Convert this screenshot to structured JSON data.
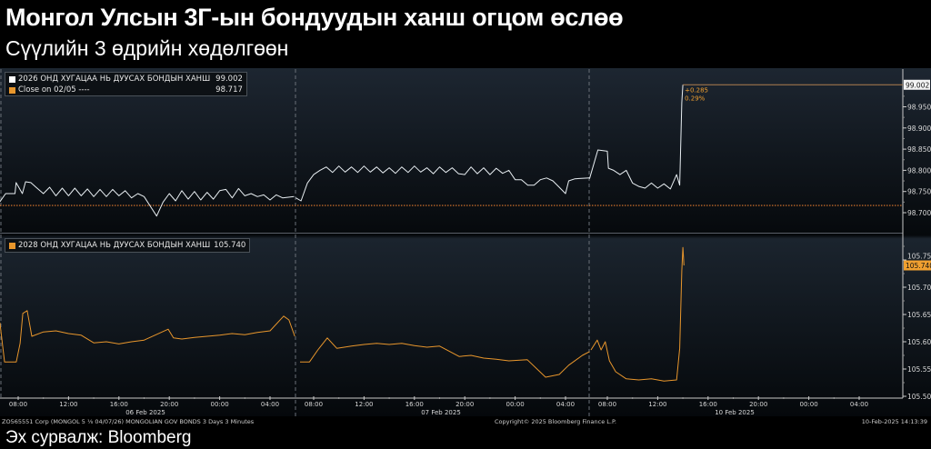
{
  "header": {
    "title": "Монгол Улсын 3Г-ын бондуудын ханш огцом өслөө",
    "subtitle": "Сүүлийн 3 өдрийн хөдөлгөөн"
  },
  "colors": {
    "series_top": "#e8eef2",
    "series_bottom": "#e8962c",
    "close_line": "#e07a2e",
    "accent": "#f0a030"
  },
  "chart_data": [
    {
      "type": "line",
      "legend": [
        {
          "name": "2026 ОНД ХУГАЦАА НЬ ДУУСАХ БОНДЫН ХАНШ",
          "value": "99.002"
        },
        {
          "name": "Close on 02/05 ----",
          "value": "98.717"
        }
      ],
      "legend_placement": "top-left",
      "close_value": 98.717,
      "last_value": 99.002,
      "last_label": "99.002",
      "change_labels": [
        "+0.285",
        "0.29%"
      ],
      "y_ticks": [
        "98.700",
        "98.750",
        "98.800",
        "98.850",
        "98.900",
        "98.950"
      ],
      "ylim": [
        98.68,
        99.05
      ],
      "sessions": [
        {
          "date": "06 Feb 2025",
          "points": [
            [
              "06:33",
              98.726
            ],
            [
              "07:00",
              98.745
            ],
            [
              "07:45",
              98.745
            ],
            [
              "07:50",
              98.771
            ],
            [
              "08:20",
              98.745
            ],
            [
              "08:35",
              98.773
            ],
            [
              "09:00",
              98.771
            ],
            [
              "09:25",
              98.76
            ],
            [
              "10:00",
              98.745
            ],
            [
              "10:30",
              98.76
            ],
            [
              "11:00",
              98.74
            ],
            [
              "11:30",
              98.758
            ],
            [
              "12:00",
              98.74
            ],
            [
              "12:30",
              98.758
            ],
            [
              "13:00",
              98.74
            ],
            [
              "13:30",
              98.756
            ],
            [
              "14:00",
              98.738
            ],
            [
              "14:30",
              98.755
            ],
            [
              "15:00",
              98.738
            ],
            [
              "15:30",
              98.755
            ],
            [
              "16:00",
              98.74
            ],
            [
              "16:30",
              98.752
            ],
            [
              "17:00",
              98.735
            ],
            [
              "17:30",
              98.745
            ],
            [
              "18:00",
              98.738
            ],
            [
              "18:30",
              98.715
            ],
            [
              "19:00",
              98.692
            ],
            [
              "19:30",
              98.725
            ],
            [
              "20:00",
              98.745
            ],
            [
              "20:30",
              98.728
            ],
            [
              "21:00",
              98.752
            ],
            [
              "21:30",
              98.732
            ],
            [
              "22:00",
              98.75
            ],
            [
              "22:30",
              98.73
            ],
            [
              "23:00",
              98.748
            ],
            [
              "23:30",
              98.732
            ],
            [
              "00:00",
              98.752
            ],
            [
              "00:30",
              98.755
            ],
            [
              "01:00",
              98.735
            ],
            [
              "01:30",
              98.757
            ],
            [
              "02:00",
              98.74
            ],
            [
              "02:30",
              98.745
            ],
            [
              "03:00",
              98.738
            ],
            [
              "03:30",
              98.742
            ],
            [
              "04:00",
              98.73
            ],
            [
              "04:30",
              98.742
            ],
            [
              "05:00",
              98.735
            ],
            [
              "05:55",
              98.738
            ]
          ]
        },
        {
          "date": "07 Feb 2025",
          "points": [
            [
              "06:35",
              98.735
            ],
            [
              "07:00",
              98.728
            ],
            [
              "07:30",
              98.77
            ],
            [
              "08:00",
              98.79
            ],
            [
              "08:30",
              98.8
            ],
            [
              "09:00",
              98.808
            ],
            [
              "09:30",
              98.795
            ],
            [
              "10:00",
              98.81
            ],
            [
              "10:30",
              98.796
            ],
            [
              "11:00",
              98.808
            ],
            [
              "11:30",
              98.795
            ],
            [
              "12:00",
              98.81
            ],
            [
              "12:30",
              98.796
            ],
            [
              "13:00",
              98.808
            ],
            [
              "13:30",
              98.794
            ],
            [
              "14:00",
              98.806
            ],
            [
              "14:30",
              98.793
            ],
            [
              "15:00",
              98.808
            ],
            [
              "15:30",
              98.795
            ],
            [
              "16:00",
              98.81
            ],
            [
              "16:30",
              98.796
            ],
            [
              "17:00",
              98.806
            ],
            [
              "17:30",
              98.792
            ],
            [
              "18:00",
              98.808
            ],
            [
              "18:30",
              98.795
            ],
            [
              "19:00",
              98.806
            ],
            [
              "19:30",
              98.792
            ],
            [
              "20:00",
              98.79
            ],
            [
              "20:30",
              98.808
            ],
            [
              "21:00",
              98.792
            ],
            [
              "21:30",
              98.806
            ],
            [
              "22:00",
              98.79
            ],
            [
              "22:30",
              98.805
            ],
            [
              "23:00",
              98.793
            ],
            [
              "23:30",
              98.8
            ],
            [
              "00:00",
              98.778
            ],
            [
              "00:30",
              98.778
            ],
            [
              "01:00",
              98.765
            ],
            [
              "01:30",
              98.765
            ],
            [
              "02:00",
              98.778
            ],
            [
              "02:30",
              98.782
            ],
            [
              "03:00",
              98.775
            ],
            [
              "03:30",
              98.76
            ],
            [
              "04:00",
              98.745
            ],
            [
              "04:15",
              98.775
            ],
            [
              "04:45",
              98.78
            ],
            [
              "05:55",
              98.782
            ]
          ]
        },
        {
          "date": "10 Feb 2025",
          "points": [
            [
              "06:35",
              98.78
            ],
            [
              "07:15",
              98.848
            ],
            [
              "08:00",
              98.845
            ],
            [
              "08:05",
              98.805
            ],
            [
              "08:30",
              98.8
            ],
            [
              "09:00",
              98.79
            ],
            [
              "09:30",
              98.8
            ],
            [
              "10:00",
              98.77
            ],
            [
              "10:30",
              98.762
            ],
            [
              "11:00",
              98.758
            ],
            [
              "11:30",
              98.77
            ],
            [
              "12:00",
              98.758
            ],
            [
              "12:30",
              98.768
            ],
            [
              "13:00",
              98.756
            ],
            [
              "13:30",
              98.79
            ],
            [
              "13:45",
              98.765
            ],
            [
              "13:55",
              98.96
            ],
            [
              "14:00",
              99.002
            ]
          ]
        }
      ]
    },
    {
      "type": "line",
      "legend": [
        {
          "name": "2028 ОНД ХУГАЦАА НЬ ДУУСАХ БОНДЫН ХАНШ",
          "value": "105.740"
        }
      ],
      "legend_placement": "top-left",
      "last_value": 105.74,
      "last_label": "105.740",
      "y_ticks": [
        "105.500",
        "105.550",
        "105.600",
        "105.650",
        "105.700",
        "105.750"
      ],
      "ylim": [
        105.498,
        105.8
      ],
      "sessions": [
        {
          "date": "06 Feb 2025",
          "points": [
            [
              "06:33",
              105.635
            ],
            [
              "06:55",
              105.563
            ],
            [
              "07:51",
              105.563
            ],
            [
              "08:09",
              105.597
            ],
            [
              "08:22",
              105.652
            ],
            [
              "08:43",
              105.657
            ],
            [
              "09:05",
              105.61
            ],
            [
              "10:00",
              105.618
            ],
            [
              "11:00",
              105.62
            ],
            [
              "12:00",
              105.615
            ],
            [
              "13:00",
              105.612
            ],
            [
              "14:00",
              105.598
            ],
            [
              "15:00",
              105.6
            ],
            [
              "16:00",
              105.596
            ],
            [
              "17:00",
              105.6
            ],
            [
              "18:00",
              105.603
            ],
            [
              "19:55",
              105.623
            ],
            [
              "20:20",
              105.607
            ],
            [
              "21:00",
              105.605
            ],
            [
              "22:00",
              105.608
            ],
            [
              "23:00",
              105.61
            ],
            [
              "00:00",
              105.612
            ],
            [
              "01:00",
              105.615
            ],
            [
              "02:00",
              105.613
            ],
            [
              "03:00",
              105.617
            ],
            [
              "04:00",
              105.62
            ],
            [
              "05:05",
              105.647
            ],
            [
              "05:30",
              105.64
            ],
            [
              "05:58",
              105.61
            ]
          ]
        },
        {
          "date": "07 Feb 2025",
          "points": [
            [
              "06:55",
              105.563
            ],
            [
              "07:40",
              105.563
            ],
            [
              "08:20",
              105.585
            ],
            [
              "09:05",
              105.607
            ],
            [
              "09:50",
              105.588
            ],
            [
              "11:00",
              105.592
            ],
            [
              "12:00",
              105.595
            ],
            [
              "13:00",
              105.597
            ],
            [
              "14:00",
              105.595
            ],
            [
              "15:00",
              105.597
            ],
            [
              "16:00",
              105.593
            ],
            [
              "17:00",
              105.59
            ],
            [
              "18:00",
              105.592
            ],
            [
              "19:33",
              105.573
            ],
            [
              "20:30",
              105.575
            ],
            [
              "21:30",
              105.57
            ],
            [
              "22:30",
              105.568
            ],
            [
              "23:30",
              105.565
            ],
            [
              "00:58",
              105.567
            ],
            [
              "02:25",
              105.535
            ],
            [
              "03:30",
              105.54
            ],
            [
              "04:15",
              105.557
            ],
            [
              "05:20",
              105.575
            ],
            [
              "05:55",
              105.582
            ]
          ]
        },
        {
          "date": "10 Feb 2025",
          "points": [
            [
              "06:42",
              105.585
            ],
            [
              "07:12",
              105.603
            ],
            [
              "07:30",
              105.585
            ],
            [
              "07:50",
              105.6
            ],
            [
              "08:10",
              105.565
            ],
            [
              "08:40",
              105.545
            ],
            [
              "09:30",
              105.532
            ],
            [
              "10:30",
              105.53
            ],
            [
              "11:30",
              105.532
            ],
            [
              "12:30",
              105.528
            ],
            [
              "13:30",
              105.53
            ],
            [
              "13:45",
              105.588
            ],
            [
              "13:55",
              105.73
            ],
            [
              "14:00",
              105.773
            ],
            [
              "14:05",
              105.74
            ]
          ]
        }
      ]
    }
  ],
  "x_axis": {
    "tick_labels": [
      "08:00",
      "12:00",
      "16:00",
      "20:00",
      "00:00",
      "04:00"
    ],
    "dates": [
      "06 Feb 2025",
      "07 Feb 2025",
      "10 Feb 2025"
    ]
  },
  "footer": {
    "security": "ZO565551 Corp (MONGOL 5 ⅛ 04/07/26) MONGOLIAN GOV BONDS 3 Days 3 Minutes",
    "copyright": "Copyright© 2025 Bloomberg Finance L.P.",
    "timestamp": "10-Feb-2025 14:13:39"
  },
  "source": "Эх сурвалж: Bloomberg"
}
